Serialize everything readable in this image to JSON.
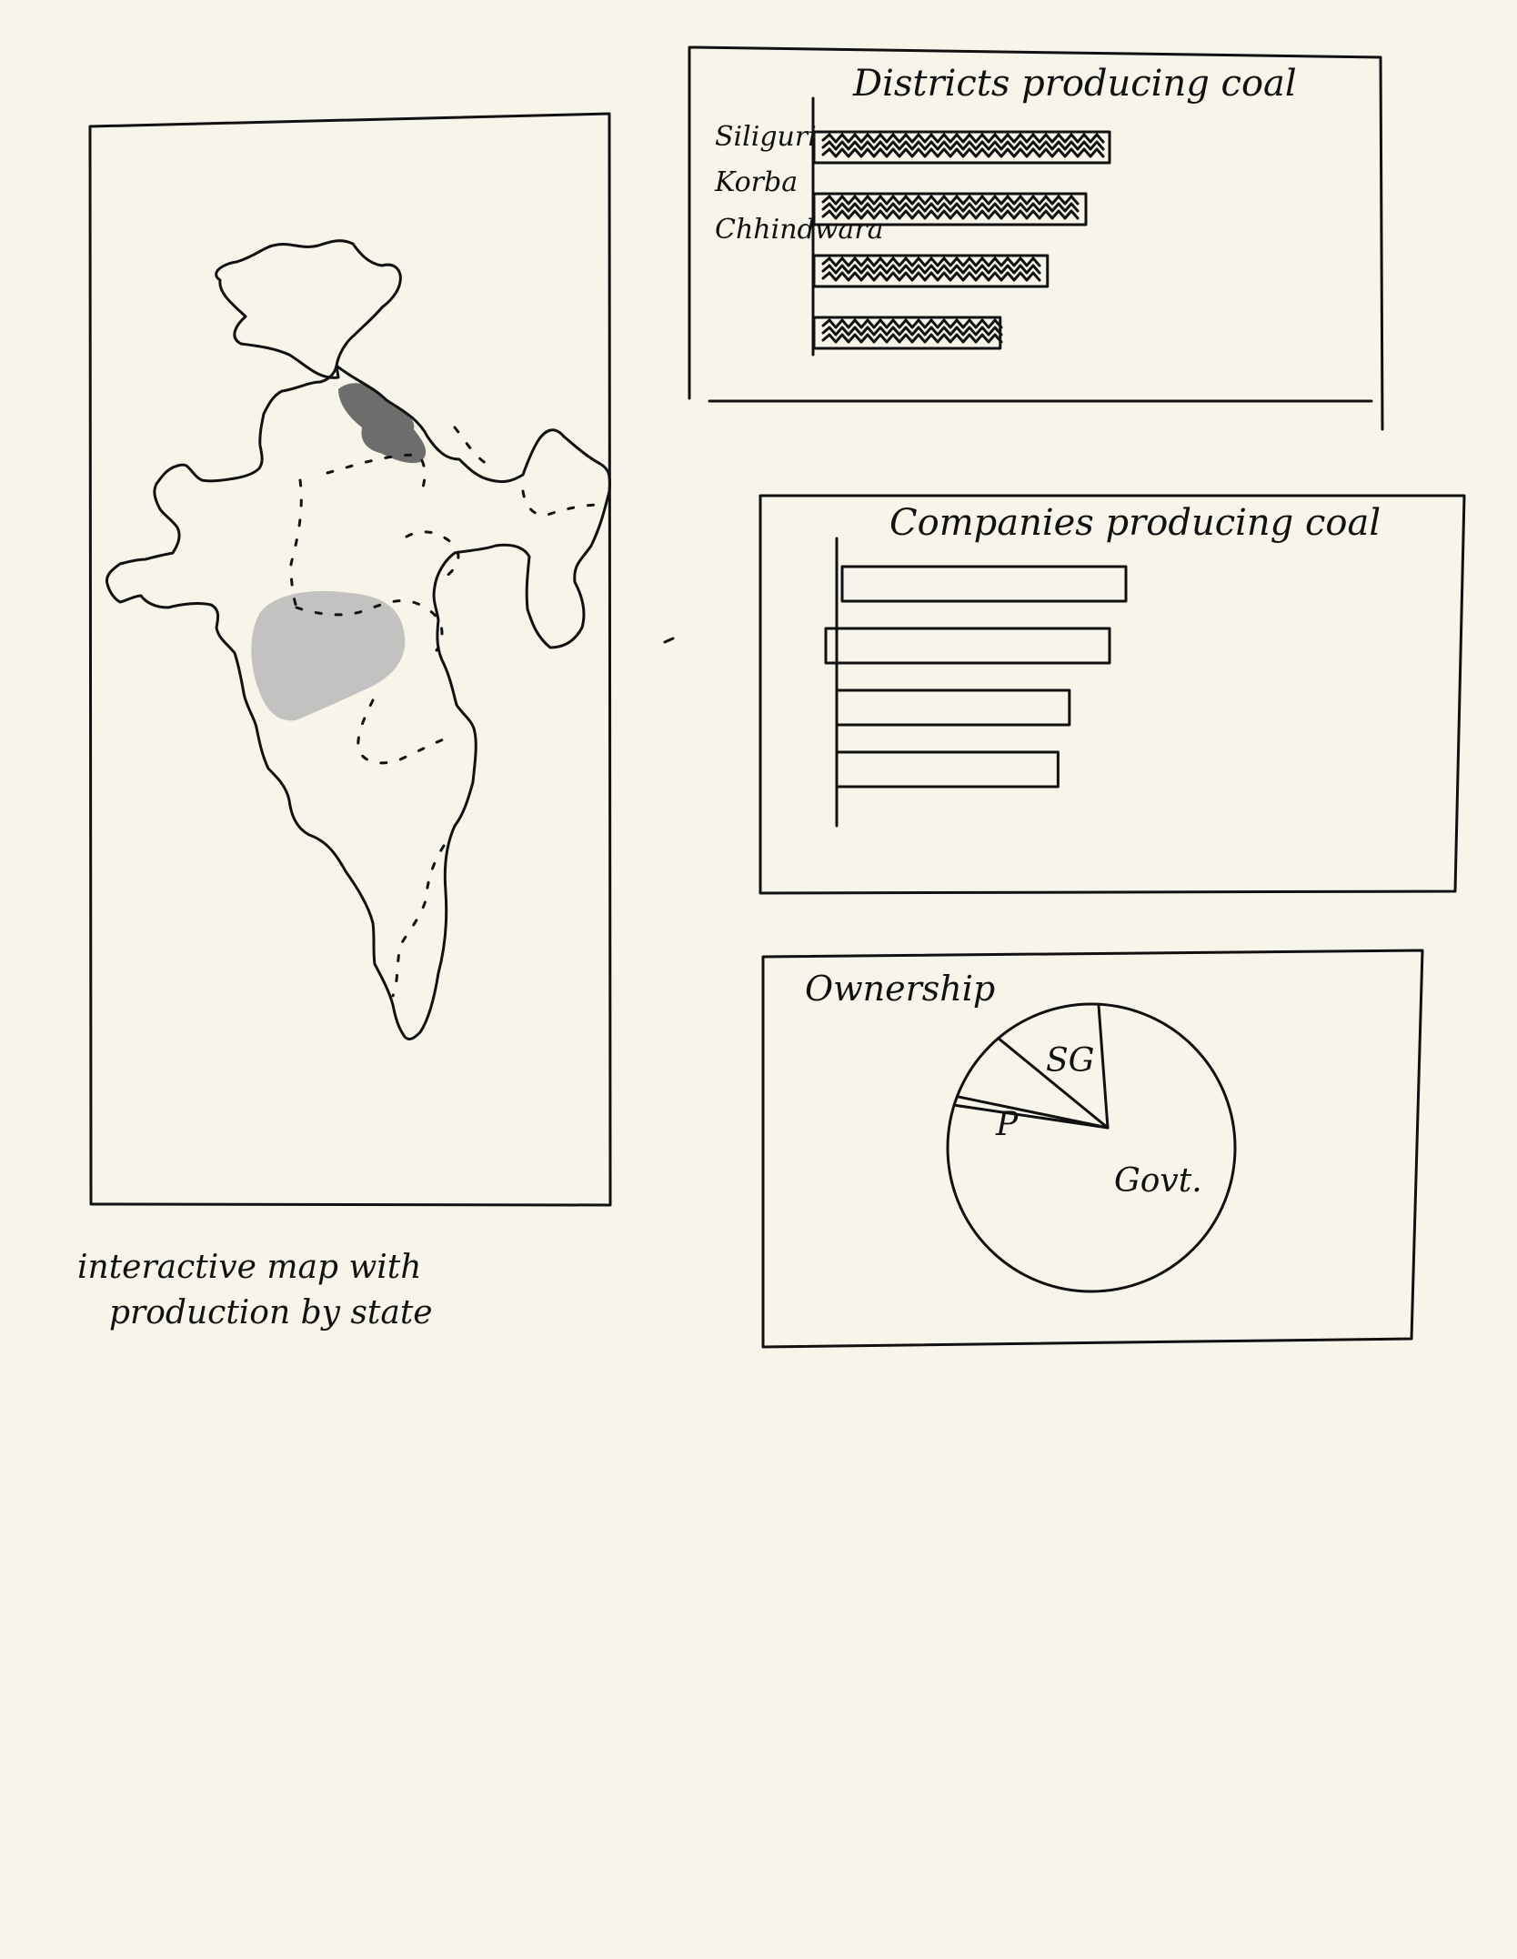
{
  "map_panel": {
    "caption_line1": "interactive map with",
    "caption_line2": "production by state",
    "highlight_dark_color": "#555555",
    "highlight_light_color": "#bdbdbd"
  },
  "district_chart": {
    "title": "Districts producing coal",
    "labels": [
      "Siliguri",
      "Korba",
      "Chhindwara",
      ""
    ],
    "values": [
      100,
      92,
      79,
      63
    ],
    "fill": "scribble"
  },
  "company_chart": {
    "title": "Companies producing coal",
    "values": [
      100,
      100,
      82,
      78
    ],
    "fill": "empty"
  },
  "ownership_chart": {
    "title": "Ownership",
    "slices": [
      {
        "label": "Govt.",
        "value": 79
      },
      {
        "label": "P",
        "value": 1
      },
      {
        "label": "P",
        "value": 8
      },
      {
        "label": "SG",
        "value": 12
      }
    ]
  },
  "chart_data": [
    {
      "type": "bar",
      "title": "Districts producing coal",
      "categories": [
        "Siliguri",
        "Korba",
        "Chhindwara",
        ""
      ],
      "values": [
        100,
        92,
        79,
        63
      ],
      "orientation": "horizontal"
    },
    {
      "type": "bar",
      "title": "Companies producing coal",
      "categories": [
        "",
        "",
        "",
        ""
      ],
      "values": [
        100,
        100,
        82,
        78
      ],
      "orientation": "horizontal"
    },
    {
      "type": "pie",
      "title": "Ownership",
      "categories": [
        "Govt.",
        "P",
        "P",
        "SG"
      ],
      "values": [
        79,
        1,
        8,
        12
      ]
    }
  ]
}
